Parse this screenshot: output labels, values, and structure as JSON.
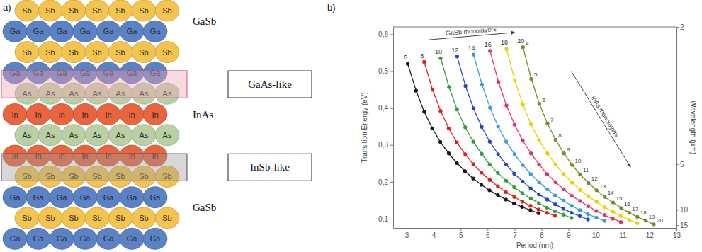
{
  "panel_labels": [
    "a)",
    "b)"
  ],
  "diagram": {
    "atoms_per_row": 7,
    "elements": [
      {
        "symbol": "Sb",
        "color": "#f4c44e"
      },
      {
        "symbol": "Ga",
        "color": "#5b82c4"
      },
      {
        "symbol": "As",
        "color": "#b8d0a4"
      },
      {
        "symbol": "In",
        "color": "#e9653f"
      }
    ],
    "layers": [
      {
        "name": "GaSb",
        "rows": [
          "Sb",
          "Ga",
          "Sb",
          "Ga"
        ]
      },
      {
        "name": "InAs",
        "rows": [
          "As",
          "In",
          "As",
          "In"
        ]
      },
      {
        "name": "GaSb",
        "rows": [
          "Sb",
          "Ga",
          "Sb",
          "Ga"
        ]
      }
    ],
    "interfaces": [
      "GaAs-like",
      "InSb-like"
    ]
  },
  "chart_data": {
    "type": "line",
    "marker": "circle",
    "line_style": "solid",
    "x_label": "Period (nm)",
    "y_label": "Transition Energy (eV)",
    "y2_label": "Wavelength (µm)",
    "annotations": [
      "GaSb monolayers",
      "InAs monolayers"
    ],
    "xlim": [
      2.5,
      13
    ],
    "xticks": [
      3,
      4,
      5,
      6,
      7,
      8,
      9,
      10,
      11,
      12,
      13
    ],
    "ylim": [
      0.075,
      0.62
    ],
    "yticks": [
      {
        "value": 0.1,
        "label": "0,1"
      },
      {
        "value": 0.2,
        "label": "0,2"
      },
      {
        "value": 0.3,
        "label": "0,3"
      },
      {
        "value": 0.4,
        "label": "0,4"
      },
      {
        "value": 0.5,
        "label": "0,5"
      },
      {
        "value": 0.6,
        "label": "0,6"
      }
    ],
    "y2lim": [
      16.53,
      2
    ],
    "y2ticks": [
      2,
      5,
      10,
      15
    ],
    "series": [
      {
        "name": "6",
        "color": "#1a1a1a",
        "x": [
          3.04,
          3.35,
          3.65,
          3.95,
          4.25,
          4.56,
          4.86,
          5.16,
          5.47,
          5.77,
          6.07,
          6.38,
          6.68,
          6.98,
          7.28,
          7.59,
          7.89
        ],
        "values": [
          0.52,
          0.447,
          0.39,
          0.345,
          0.308,
          0.277,
          0.251,
          0.229,
          0.209,
          0.192,
          0.177,
          0.164,
          0.152,
          0.141,
          0.132,
          0.123,
          0.115
        ]
      },
      {
        "name": "8",
        "color": "#e0201b",
        "x": [
          3.65,
          3.96,
          4.26,
          4.56,
          4.86,
          5.17,
          5.47,
          5.77,
          6.08,
          6.38,
          6.68,
          6.99,
          7.29,
          7.59,
          7.89,
          8.2,
          8.5
        ],
        "values": [
          0.525,
          0.45,
          0.392,
          0.345,
          0.307,
          0.275,
          0.248,
          0.225,
          0.205,
          0.188,
          0.172,
          0.159,
          0.146,
          0.135,
          0.125,
          0.116,
          0.108
        ]
      },
      {
        "name": "10",
        "color": "#2e9e3a",
        "x": [
          4.26,
          4.57,
          4.87,
          5.17,
          5.47,
          5.78,
          6.08,
          6.38,
          6.69,
          6.99,
          7.29,
          7.6,
          7.9,
          8.2,
          8.5,
          8.81,
          9.11
        ],
        "values": [
          0.535,
          0.457,
          0.396,
          0.348,
          0.309,
          0.276,
          0.247,
          0.224,
          0.203,
          0.185,
          0.169,
          0.155,
          0.142,
          0.13,
          0.12,
          0.111,
          0.102
        ]
      },
      {
        "name": "12",
        "color": "#2348bf",
        "x": [
          4.87,
          5.18,
          5.48,
          5.78,
          6.08,
          6.39,
          6.69,
          6.99,
          7.3,
          7.6,
          7.9,
          8.21,
          8.51,
          8.81,
          9.11,
          9.42,
          9.72
        ],
        "values": [
          0.54,
          0.46,
          0.399,
          0.349,
          0.309,
          0.275,
          0.247,
          0.222,
          0.201,
          0.182,
          0.166,
          0.152,
          0.139,
          0.127,
          0.116,
          0.107,
          0.098
        ]
      },
      {
        "name": "14",
        "color": "#3a9ad9",
        "x": [
          5.48,
          5.79,
          6.09,
          6.39,
          6.69,
          7.0,
          7.3,
          7.6,
          7.91,
          8.21,
          8.51,
          8.82,
          9.12,
          9.42,
          9.72,
          10.03,
          10.33
        ],
        "values": [
          0.545,
          0.464,
          0.401,
          0.35,
          0.309,
          0.275,
          0.246,
          0.221,
          0.199,
          0.18,
          0.163,
          0.149,
          0.135,
          0.123,
          0.112,
          0.103,
          0.094
        ]
      },
      {
        "name": "16",
        "color": "#e0306a",
        "x": [
          6.09,
          6.4,
          6.7,
          7.0,
          7.3,
          7.61,
          7.91,
          8.21,
          8.52,
          8.82,
          9.12,
          9.43,
          9.73,
          10.03,
          10.33,
          10.64,
          10.94
        ],
        "values": [
          0.555,
          0.471,
          0.407,
          0.355,
          0.312,
          0.277,
          0.247,
          0.221,
          0.199,
          0.18,
          0.162,
          0.148,
          0.134,
          0.121,
          0.11,
          0.1,
          0.091
        ]
      },
      {
        "name": "18",
        "color": "#ecd000",
        "x": [
          6.7,
          7.01,
          7.31,
          7.61,
          7.91,
          8.22,
          8.52,
          8.82,
          9.13,
          9.43,
          9.73,
          10.04,
          10.34,
          10.64,
          10.94,
          11.25,
          11.55
        ],
        "values": [
          0.56,
          0.475,
          0.409,
          0.356,
          0.313,
          0.277,
          0.247,
          0.221,
          0.198,
          0.178,
          0.161,
          0.146,
          0.131,
          0.119,
          0.107,
          0.097,
          0.088
        ]
      },
      {
        "name": "20",
        "color": "#6f8f26",
        "x": [
          7.31,
          7.62,
          7.92,
          8.22,
          8.52,
          8.83,
          9.13,
          9.43,
          9.74,
          10.04,
          10.34,
          10.65,
          10.95,
          11.25,
          11.55,
          11.86,
          12.16
        ],
        "values": [
          0.565,
          0.479,
          0.411,
          0.358,
          0.314,
          0.277,
          0.246,
          0.22,
          0.197,
          0.177,
          0.159,
          0.144,
          0.129,
          0.116,
          0.105,
          0.095,
          0.085
        ],
        "point_labels": [
          4,
          5,
          6,
          7,
          8,
          9,
          10,
          11,
          12,
          13,
          14,
          15,
          16,
          17,
          18,
          19,
          20
        ]
      }
    ]
  }
}
